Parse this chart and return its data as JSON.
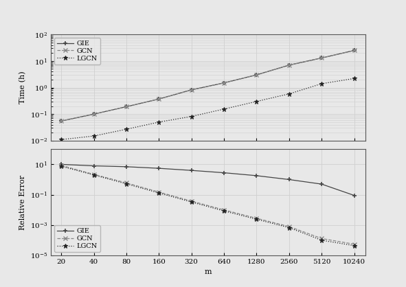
{
  "m_values": [
    20,
    40,
    80,
    160,
    320,
    640,
    1280,
    2560,
    5120,
    10240
  ],
  "time_GIE": [
    0.055,
    0.1,
    0.19,
    0.37,
    0.82,
    1.5,
    3.0,
    7.0,
    13.0,
    25.0
  ],
  "time_GCN": [
    0.055,
    0.1,
    0.19,
    0.37,
    0.82,
    1.5,
    3.0,
    7.0,
    13.0,
    25.0
  ],
  "time_LGCN": [
    0.011,
    0.015,
    0.027,
    0.05,
    0.082,
    0.155,
    0.3,
    0.58,
    1.4,
    2.2
  ],
  "err_GIE": [
    10.0,
    8.0,
    7.0,
    5.5,
    4.0,
    2.8,
    1.8,
    1.0,
    0.5,
    0.09
  ],
  "err_GCN": [
    8.5,
    2.2,
    0.6,
    0.15,
    0.038,
    0.01,
    0.0028,
    0.0008,
    0.00013,
    5.5e-05
  ],
  "err_LGCN": [
    7.5,
    2.0,
    0.52,
    0.13,
    0.033,
    0.0085,
    0.0024,
    0.00068,
    0.0001,
    4.4e-05
  ],
  "time_ylim": [
    0.01,
    100
  ],
  "err_ylim": [
    1e-05,
    100
  ],
  "color_GIE": "#444444",
  "color_GCN": "#888888",
  "color_LGCN": "#222222",
  "bg_color": "#e8e8e8",
  "grid_color": "#d0d0d0",
  "ylabel_top": "Time (h)",
  "ylabel_bot": "Relative Error",
  "xlabel": "m",
  "legend_GIE": "GIE",
  "legend_GCN": "GCN",
  "legend_LGCN": "LGCN"
}
